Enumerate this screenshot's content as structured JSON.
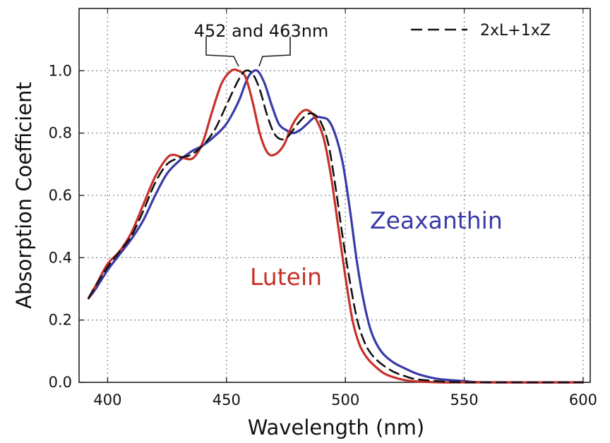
{
  "chart_data": {
    "type": "line",
    "xlabel": "Wavelength (nm)",
    "ylabel": "Absorption Coefficient",
    "xlim": [
      388,
      603
    ],
    "ylim": [
      0,
      1.2
    ],
    "x_ticks": [
      400,
      450,
      500,
      550,
      600
    ],
    "y_ticks": [
      0.0,
      0.2,
      0.4,
      0.6,
      0.8,
      1.0
    ],
    "x_tick_labels": [
      "400",
      "450",
      "500",
      "550",
      "600"
    ],
    "y_tick_labels": [
      "0.0",
      "0.2",
      "0.4",
      "0.6",
      "0.8",
      "1.0"
    ],
    "grid": true,
    "legend_position": "top-right",
    "legend": {
      "text": "2xL+1xZ",
      "series": "mix"
    },
    "annotation": {
      "text": "452 and 463nm"
    },
    "series": [
      {
        "key": "lutein",
        "name": "Lutein",
        "color": "#c8302a",
        "style": "solid",
        "label_position": "lower-middle",
        "x": [
          392,
          395,
          400,
          405,
          410,
          415,
          420,
          425,
          428,
          432,
          436,
          440,
          444,
          448,
          452,
          455,
          458,
          461,
          464,
          467,
          470,
          474,
          478,
          482,
          485,
          488,
          491,
          494,
          497,
          500,
          503,
          506,
          509,
          512,
          516,
          520,
          525,
          530,
          540,
          550,
          560,
          600
        ],
        "y": [
          0.27,
          0.31,
          0.38,
          0.42,
          0.48,
          0.57,
          0.66,
          0.72,
          0.73,
          0.72,
          0.72,
          0.77,
          0.87,
          0.96,
          1.0,
          1.0,
          0.98,
          0.9,
          0.8,
          0.74,
          0.73,
          0.76,
          0.83,
          0.87,
          0.87,
          0.84,
          0.78,
          0.66,
          0.5,
          0.34,
          0.2,
          0.12,
          0.08,
          0.055,
          0.03,
          0.017,
          0.007,
          0.003,
          0.0,
          0.0,
          0.0,
          0.0
        ]
      },
      {
        "key": "zeaxanthin",
        "name": "Zeaxanthin",
        "color": "#3a3aa8",
        "style": "solid",
        "label_position": "right",
        "x": [
          392,
          395,
          400,
          405,
          410,
          415,
          420,
          425,
          430,
          435,
          440,
          445,
          450,
          455,
          458,
          460,
          463,
          466,
          469,
          472,
          475,
          478,
          481,
          484,
          487,
          490,
          493,
          496,
          499,
          502,
          505,
          508,
          511,
          515,
          520,
          525,
          530,
          535,
          540,
          550,
          560,
          600
        ],
        "y": [
          0.27,
          0.3,
          0.36,
          0.41,
          0.46,
          0.52,
          0.6,
          0.67,
          0.71,
          0.74,
          0.76,
          0.79,
          0.83,
          0.9,
          0.96,
          0.99,
          1.0,
          0.96,
          0.89,
          0.83,
          0.81,
          0.8,
          0.81,
          0.83,
          0.85,
          0.85,
          0.84,
          0.79,
          0.7,
          0.55,
          0.38,
          0.25,
          0.16,
          0.1,
          0.065,
          0.045,
          0.028,
          0.017,
          0.01,
          0.004,
          0.0,
          0.0
        ]
      },
      {
        "key": "mix",
        "name": "2xL+1xZ",
        "color": "#111111",
        "style": "dashed",
        "label_position": "none",
        "x": [
          392,
          395,
          400,
          405,
          410,
          415,
          420,
          425,
          430,
          435,
          440,
          445,
          450,
          455,
          458,
          461,
          464,
          467,
          470,
          473,
          476,
          480,
          484,
          487,
          490,
          493,
          496,
          499,
          502,
          505,
          508,
          511,
          515,
          520,
          525,
          530,
          540,
          550,
          560,
          600
        ],
        "y": [
          0.27,
          0.31,
          0.37,
          0.42,
          0.47,
          0.55,
          0.64,
          0.7,
          0.72,
          0.73,
          0.76,
          0.81,
          0.89,
          0.97,
          1.0,
          0.99,
          0.94,
          0.86,
          0.8,
          0.78,
          0.79,
          0.83,
          0.86,
          0.86,
          0.83,
          0.76,
          0.62,
          0.46,
          0.32,
          0.2,
          0.13,
          0.09,
          0.06,
          0.035,
          0.02,
          0.01,
          0.003,
          0.0,
          0.0,
          0.0
        ]
      }
    ]
  }
}
